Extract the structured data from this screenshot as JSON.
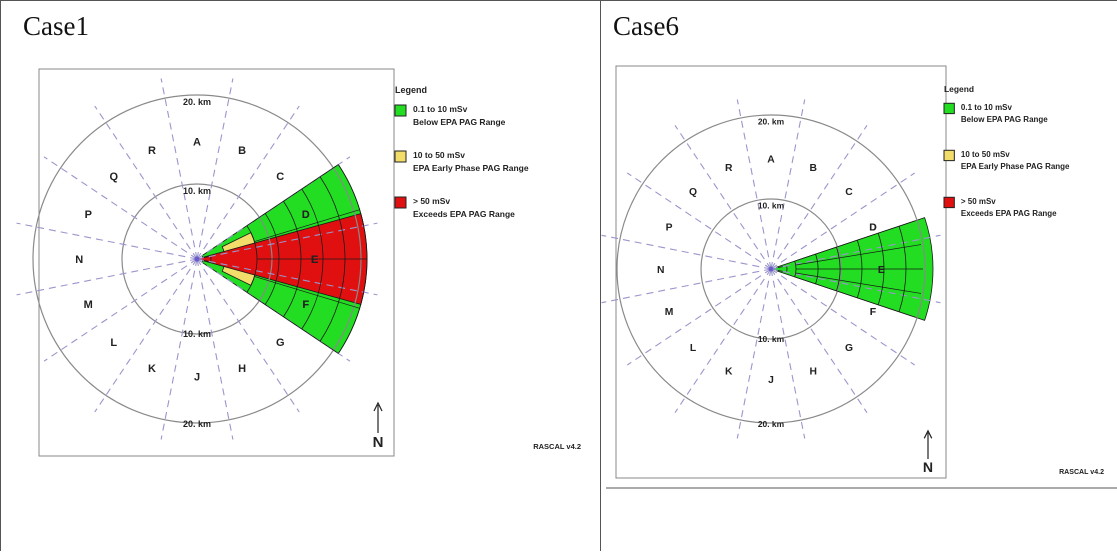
{
  "panels": [
    {
      "title": "Case1",
      "sector_labels": [
        "A",
        "B",
        "C",
        "D",
        "E",
        "F",
        "G",
        "H",
        "J",
        "K",
        "L",
        "M",
        "N",
        "P",
        "Q",
        "R"
      ],
      "ring_labels": {
        "outer_top": "20. km",
        "inner_top": "10. km",
        "inner_bottom": "10. km",
        "outer_bottom": "20. km"
      },
      "north_label": "N",
      "version_label": "RASCAL v4.2",
      "legend": {
        "title": "Legend",
        "items": [
          {
            "color": "#22dd22",
            "line1": "0.1 to 10 mSv",
            "line2": "Below EPA PAG Range"
          },
          {
            "color": "#f2dc6a",
            "line1": "10 to 50 mSv",
            "line2": "EPA Early Phase PAG Range"
          },
          {
            "color": "#e01010",
            "line1": "> 50 mSv",
            "line2": "Exceeds EPA PAG Range"
          }
        ]
      }
    },
    {
      "title": "Case6",
      "sector_labels": [
        "A",
        "B",
        "C",
        "D",
        "E",
        "F",
        "G",
        "H",
        "J",
        "K",
        "L",
        "M",
        "N",
        "P",
        "Q",
        "R"
      ],
      "ring_labels": {
        "outer_top": "20. km",
        "inner_top": "10. km",
        "inner_bottom": "10. km",
        "outer_bottom": "20. km"
      },
      "north_label": "N",
      "version_label": "RASCAL v4.2",
      "legend": {
        "title": "Legend",
        "items": [
          {
            "color": "#22dd22",
            "line1": "0.1 to 10 mSv",
            "line2": "Below EPA PAG Range"
          },
          {
            "color": "#f2dc6a",
            "line1": "10 to 50 mSv",
            "line2": "EPA Early Phase PAG Range"
          },
          {
            "color": "#e01010",
            "line1": "> 50 mSv",
            "line2": "Exceeds EPA PAG Range"
          }
        ]
      }
    }
  ]
}
